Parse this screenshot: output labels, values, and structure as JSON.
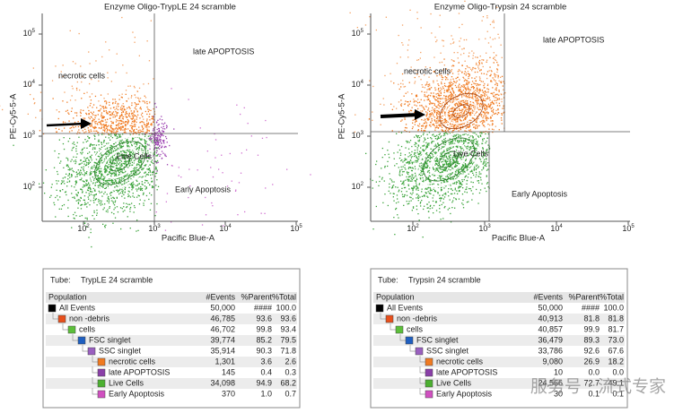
{
  "plots": [
    {
      "title": "Enzyme Oligo-TrypLE 24 scramble",
      "x_label": "Pacific Blue-A",
      "y_label": "PE-Cy5-5-A",
      "quadrants": [
        "necrotic cells",
        "late APOPTOSIS",
        "Live Cells",
        "Early Apoptosis"
      ],
      "xticks": [
        {
          "base": "10",
          "exp": "2"
        },
        {
          "base": "10",
          "exp": "3"
        },
        {
          "base": "10",
          "exp": "4"
        },
        {
          "base": "10",
          "exp": "5"
        }
      ],
      "yticks": [
        {
          "base": "10",
          "exp": "2"
        },
        {
          "base": "10",
          "exp": "3"
        },
        {
          "base": "10",
          "exp": "4"
        },
        {
          "base": "10",
          "exp": "5"
        }
      ]
    },
    {
      "title": "Enzyme Oligo-Trypsin 24 scramble",
      "x_label": "Pacific Blue-A",
      "y_label": "PE-Cy5-5-A",
      "quadrants": [
        "necrotic cells",
        "late APOPTOSIS",
        "Live Cells",
        "Early Apoptosis"
      ],
      "xticks": [
        {
          "base": "10",
          "exp": "2"
        },
        {
          "base": "10",
          "exp": "3"
        },
        {
          "base": "10",
          "exp": "4"
        },
        {
          "base": "10",
          "exp": "5"
        }
      ],
      "yticks": [
        {
          "base": "10",
          "exp": "2"
        },
        {
          "base": "10",
          "exp": "3"
        },
        {
          "base": "10",
          "exp": "4"
        },
        {
          "base": "10",
          "exp": "5"
        }
      ]
    }
  ],
  "tables": [
    {
      "tube_label": "Tube:",
      "tube": "TrypLE 24 scramble",
      "columns": [
        "Population",
        "#Events",
        "%Parent",
        "%Total"
      ],
      "rows": [
        {
          "name": "All Events",
          "events": "50,000",
          "parent": "####",
          "total": "100.0"
        },
        {
          "name": "non -debris",
          "events": "46,785",
          "parent": "93.6",
          "total": "93.6"
        },
        {
          "name": "cells",
          "events": "46,702",
          "parent": "99.8",
          "total": "93.4"
        },
        {
          "name": "FSC singlet",
          "events": "39,774",
          "parent": "85.2",
          "total": "79.5"
        },
        {
          "name": "SSC singlet",
          "events": "35,914",
          "parent": "90.3",
          "total": "71.8"
        },
        {
          "name": "necrotic cells",
          "events": "1,301",
          "parent": "3.6",
          "total": "2.6"
        },
        {
          "name": "late APOPTOSIS",
          "events": "145",
          "parent": "0.4",
          "total": "0.3"
        },
        {
          "name": "Live Cells",
          "events": "34,098",
          "parent": "94.9",
          "total": "68.2"
        },
        {
          "name": "Early Apoptosis",
          "events": "370",
          "parent": "1.0",
          "total": "0.7"
        }
      ]
    },
    {
      "tube_label": "Tube:",
      "tube": "Trypsin 24 scramble",
      "columns": [
        "Population",
        "#Events",
        "%Parent",
        "%Total"
      ],
      "rows": [
        {
          "name": "All Events",
          "events": "50,000",
          "parent": "####",
          "total": "100.0"
        },
        {
          "name": "non -debris",
          "events": "40,913",
          "parent": "81.8",
          "total": "81.8"
        },
        {
          "name": "cells",
          "events": "40,857",
          "parent": "99.9",
          "total": "81.7"
        },
        {
          "name": "FSC singlet",
          "events": "36,479",
          "parent": "89.3",
          "total": "73.0"
        },
        {
          "name": "SSC singlet",
          "events": "33,786",
          "parent": "92.6",
          "total": "67.6"
        },
        {
          "name": "necrotic cells",
          "events": "9,080",
          "parent": "26.9",
          "total": "18.2"
        },
        {
          "name": "late APOPTOSIS",
          "events": "10",
          "parent": "0.0",
          "total": "0.0"
        },
        {
          "name": "Live Cells",
          "events": "24,566",
          "parent": "72.7",
          "total": "49.1"
        },
        {
          "name": "Early Apoptosis",
          "events": "30",
          "parent": "0.1",
          "total": "0.1"
        }
      ]
    }
  ],
  "watermark": "服务号 · 流式专家"
}
